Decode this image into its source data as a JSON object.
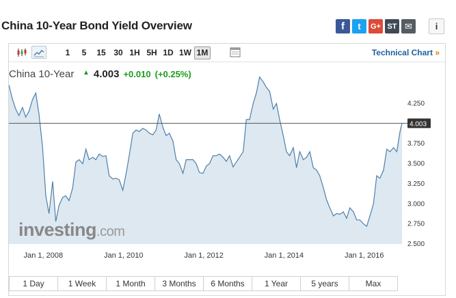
{
  "header": {
    "title": "China 10-Year Bond Yield Overview",
    "share": {
      "facebook": "f",
      "twitter": "t",
      "google": "G+",
      "stocktwits": "ST",
      "email": "✉"
    },
    "info": "i"
  },
  "toolbar": {
    "periods": [
      "1",
      "5",
      "15",
      "30",
      "1H",
      "5H",
      "1D",
      "1W",
      "1M"
    ],
    "active_period": "1M",
    "technical_link": "Technical Chart",
    "technical_arrow": "»"
  },
  "quote": {
    "name": "China 10-Year",
    "last": "4.003",
    "change": "+0.010",
    "change_pct": "(+0.25%)"
  },
  "watermark": {
    "brand": "investing",
    "domain": ".com"
  },
  "ranges": [
    "1 Day",
    "1 Week",
    "1 Month",
    "3 Months",
    "6 Months",
    "1 Year",
    "5 years",
    "Max"
  ],
  "chart_data": {
    "type": "area",
    "ylim": [
      2.5,
      4.5
    ],
    "xlim": [
      2007.58,
      2017.38
    ],
    "y_ticks": [
      "4.250",
      "4.000",
      "3.750",
      "3.500",
      "3.250",
      "3.000",
      "2.750",
      "2.500"
    ],
    "y_tick_values": [
      4.25,
      4.0,
      3.75,
      3.5,
      3.25,
      3.0,
      2.75,
      2.5
    ],
    "x_ticks": [
      "Jan 1, 2008",
      "Jan 1, 2010",
      "Jan 1, 2012",
      "Jan 1, 2014",
      "Jan 1, 2016"
    ],
    "x_tick_values": [
      2008,
      2010,
      2012,
      2014,
      2016
    ],
    "last_value": 4.003,
    "last_label": "4.003",
    "grid": false,
    "x": [
      2007.58,
      2007.67,
      2007.75,
      2007.83,
      2007.92,
      2008.0,
      2008.08,
      2008.17,
      2008.25,
      2008.33,
      2008.42,
      2008.5,
      2008.58,
      2008.67,
      2008.75,
      2008.83,
      2008.92,
      2009.0,
      2009.08,
      2009.17,
      2009.25,
      2009.33,
      2009.42,
      2009.5,
      2009.58,
      2009.67,
      2009.75,
      2009.83,
      2009.92,
      2010.0,
      2010.08,
      2010.17,
      2010.25,
      2010.33,
      2010.42,
      2010.5,
      2010.58,
      2010.67,
      2010.75,
      2010.83,
      2010.92,
      2011.0,
      2011.08,
      2011.17,
      2011.25,
      2011.33,
      2011.42,
      2011.5,
      2011.58,
      2011.67,
      2011.75,
      2011.83,
      2011.92,
      2012.0,
      2012.08,
      2012.17,
      2012.25,
      2012.33,
      2012.42,
      2012.5,
      2012.58,
      2012.67,
      2012.75,
      2012.83,
      2012.92,
      2013.0,
      2013.08,
      2013.17,
      2013.25,
      2013.33,
      2013.42,
      2013.5,
      2013.58,
      2013.67,
      2013.75,
      2013.83,
      2013.92,
      2014.0,
      2014.08,
      2014.17,
      2014.25,
      2014.33,
      2014.42,
      2014.5,
      2014.58,
      2014.67,
      2014.75,
      2014.83,
      2014.92,
      2015.0,
      2015.08,
      2015.17,
      2015.25,
      2015.33,
      2015.42,
      2015.5,
      2015.58,
      2015.67,
      2015.75,
      2015.83,
      2015.92,
      2016.0,
      2016.08,
      2016.17,
      2016.25,
      2016.33,
      2016.42,
      2016.5,
      2016.58,
      2016.67,
      2016.75,
      2016.83,
      2016.92,
      2017.0,
      2017.08,
      2017.17,
      2017.25,
      2017.33,
      2017.38
    ],
    "y": [
      4.48,
      4.3,
      4.18,
      4.1,
      4.2,
      4.08,
      4.15,
      4.3,
      4.38,
      4.12,
      3.7,
      3.1,
      2.88,
      3.28,
      2.78,
      2.98,
      3.08,
      3.1,
      3.04,
      3.2,
      3.52,
      3.55,
      3.5,
      3.68,
      3.55,
      3.58,
      3.55,
      3.62,
      3.59,
      3.6,
      3.35,
      3.31,
      3.32,
      3.3,
      3.17,
      3.37,
      3.6,
      3.88,
      3.92,
      3.9,
      3.94,
      3.92,
      3.88,
      3.86,
      3.92,
      4.12,
      3.95,
      3.85,
      3.88,
      3.78,
      3.55,
      3.5,
      3.38,
      3.55,
      3.55,
      3.55,
      3.5,
      3.39,
      3.38,
      3.47,
      3.5,
      3.6,
      3.6,
      3.62,
      3.58,
      3.53,
      3.6,
      3.46,
      3.52,
      3.58,
      3.65,
      4.05,
      4.05,
      4.25,
      4.38,
      4.58,
      4.52,
      4.45,
      4.4,
      4.18,
      4.25,
      4.05,
      3.85,
      3.65,
      3.6,
      3.7,
      3.45,
      3.65,
      3.55,
      3.58,
      3.65,
      3.45,
      3.42,
      3.35,
      3.2,
      3.05,
      2.95,
      2.85,
      2.88,
      2.87,
      2.9,
      2.82,
      2.95,
      2.9,
      2.8,
      2.8,
      2.75,
      2.72,
      2.85,
      3.0,
      3.35,
      3.32,
      3.42,
      3.68,
      3.65,
      3.7,
      3.65,
      3.9,
      4.003
    ]
  }
}
